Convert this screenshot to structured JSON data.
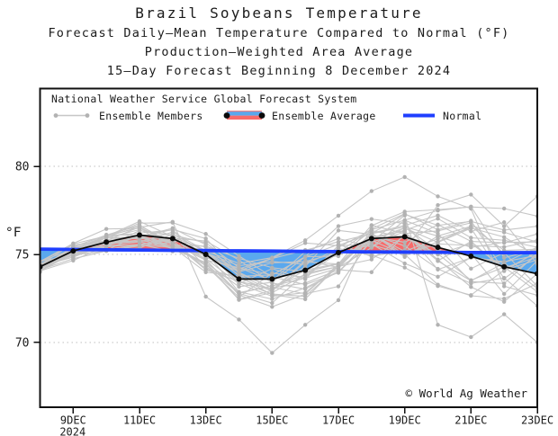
{
  "titles": {
    "line1": "Brazil Soybeans Temperature",
    "line2": "Forecast Daily–Mean Temperature Compared to Normal (°F)",
    "line3": "Production–Weighted Area Average",
    "line4": "15–Day Forecast Beginning 8 December 2024"
  },
  "legend": {
    "heading": "National Weather Service Global Forecast System",
    "members_label": "Ensemble Members",
    "average_label": "Ensemble Average",
    "normal_label": "Normal"
  },
  "watermark": "© World Ag Weather",
  "axes": {
    "y_unit": "°F",
    "y_tick_labels": [
      "80",
      "75",
      "70"
    ],
    "y_tick_values": [
      80,
      75,
      70
    ],
    "x_tick_labels": [
      "9DEC",
      "11DEC",
      "13DEC",
      "15DEC",
      "17DEC",
      "19DEC",
      "21DEC",
      "23DEC"
    ],
    "x_tick_days": [
      1,
      3,
      5,
      7,
      9,
      11,
      13,
      15
    ],
    "year_label": "2024"
  },
  "colors": {
    "normal_line": "#1f3fff",
    "average_line": "#0a0a0a",
    "fill_above": "#f96a6a",
    "fill_below": "#5aa8ee",
    "member_line": "#c6c6c6",
    "member_dot": "#b2b2b2",
    "gridline": "#bfbfbf",
    "axis": "#111111"
  },
  "chart_data": {
    "type": "line",
    "title": "Brazil Soybeans Temperature",
    "xlabel": "",
    "ylabel": "°F",
    "ylim": [
      66.3,
      84.4
    ],
    "y_gridlines": [
      70,
      75,
      80
    ],
    "grid": "dotted-horizontal",
    "legend_position": "top-inside",
    "categories": [
      "8DEC",
      "9DEC",
      "10DEC",
      "11DEC",
      "12DEC",
      "13DEC",
      "14DEC",
      "15DEC",
      "16DEC",
      "17DEC",
      "18DEC",
      "19DEC",
      "20DEC",
      "21DEC",
      "22DEC",
      "23DEC"
    ],
    "series": [
      {
        "name": "Ensemble Average",
        "color": "#0a0a0a",
        "values": [
          74.3,
          75.2,
          75.7,
          76.1,
          75.9,
          75.0,
          73.6,
          73.6,
          74.1,
          75.1,
          75.9,
          76.0,
          75.4,
          74.9,
          74.3,
          73.9
        ]
      },
      {
        "name": "Normal",
        "color": "#1f3fff",
        "values": [
          75.3,
          75.28,
          75.26,
          75.25,
          75.23,
          75.22,
          75.2,
          75.19,
          75.17,
          75.16,
          75.14,
          75.13,
          75.12,
          75.11,
          75.1,
          75.1
        ]
      }
    ],
    "fill_above_color": "#f96a6a",
    "fill_below_color": "#5aa8ee",
    "ensemble_members": {
      "name": "Ensemble Members",
      "count": 30,
      "seed": 20241208,
      "envelope_min": [
        74.0,
        73.4,
        73.5,
        73.9,
        73.0,
        72.2,
        71.2,
        69.4,
        71.0,
        71.5,
        72.0,
        71.5,
        71.0,
        70.3,
        70.3,
        70.0
      ],
      "envelope_max": [
        74.6,
        76.3,
        77.2,
        77.5,
        77.4,
        77.0,
        76.3,
        76.3,
        76.9,
        78.2,
        78.8,
        79.4,
        78.6,
        78.4,
        78.8,
        78.4
      ],
      "outliers": [
        {
          "member": 0,
          "start_day": 5,
          "values": [
            72.6,
            71.3,
            69.4,
            71.0,
            72.4
          ]
        },
        {
          "member": 1,
          "start_day": 8,
          "values": [
            75.8,
            77.2,
            78.6,
            79.4,
            78.3,
            77.6
          ]
        },
        {
          "member": 2,
          "start_day": 12,
          "values": [
            77.8,
            78.4,
            76.6,
            78.3
          ]
        },
        {
          "member": 3,
          "start_day": 12,
          "values": [
            71.0,
            70.3,
            71.6,
            70.0
          ]
        }
      ]
    }
  }
}
